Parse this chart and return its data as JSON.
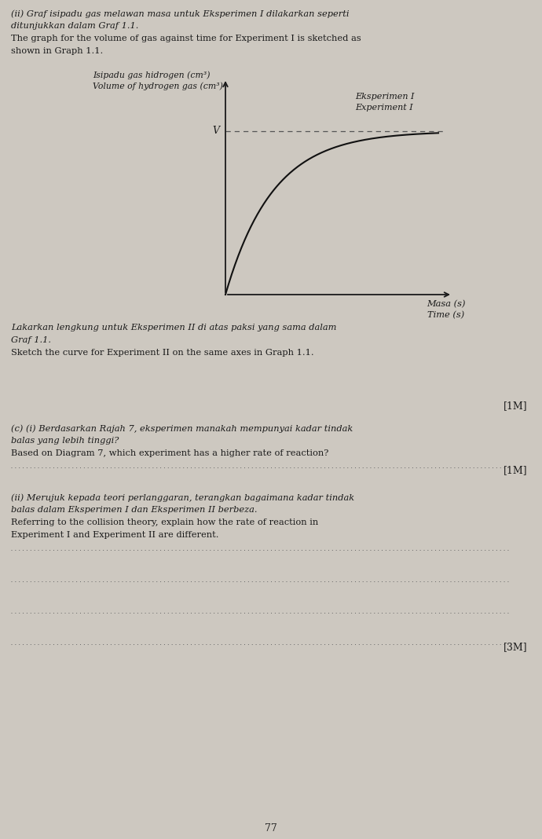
{
  "background_color": "#cdc8c0",
  "text_color": "#1a1a1a",
  "ylabel_malay": "Isipadu gas hidrogen (cm³)",
  "ylabel_english": "Volume of hydrogen gas (cm³)",
  "xlabel_malay": "Masa (s)",
  "xlabel_english": "Time (s)",
  "legend_line1": "Eksperimen I",
  "legend_line2": "Experiment I",
  "v_label": "V",
  "header_line1": "(ii) Graf isipadu gas melawan masa untuk Eksperimen I dilakarkan seperti",
  "header_line2": "ditunjukkan dalam Graf 1.1.",
  "header_line3": "The graph for the volume of gas against time for Experiment I is sketched as",
  "header_line4": "shown in Graph 1.1.",
  "sketch_line1": "Lakarkan lengkung untuk Eksperimen II di atas paksi yang sama dalam",
  "sketch_line2": "Graf 1.1.",
  "sketch_line3": "Sketch the curve for Experiment II on the same axes in Graph 1.1.",
  "mark_1m": "[1M]",
  "ci_line1": "(c) (i) Berdasarkan Rajah 7, eksperimen manakah mempunyai kadar tindak",
  "ci_line2": "balas yang lebih tinggi?",
  "ci_line3": "Based on Diagram 7, which experiment has a higher rate of reaction?",
  "cii_line1": "(ii) Merujuk kepada teori perlanggaran, terangkan bagaimana kadar tindak",
  "cii_line2": "balas dalam Eksperimen I dan Eksperimen II berbeza.",
  "cii_line3": "Referring to the collision theory, explain how the rate of reaction in",
  "cii_line4": "Experiment I and Experiment II are different.",
  "mark_3m": "[3M]",
  "page_number": "77",
  "dotted_line_color": "#666666",
  "curve_color": "#111111",
  "dashed_line_color": "#555555"
}
